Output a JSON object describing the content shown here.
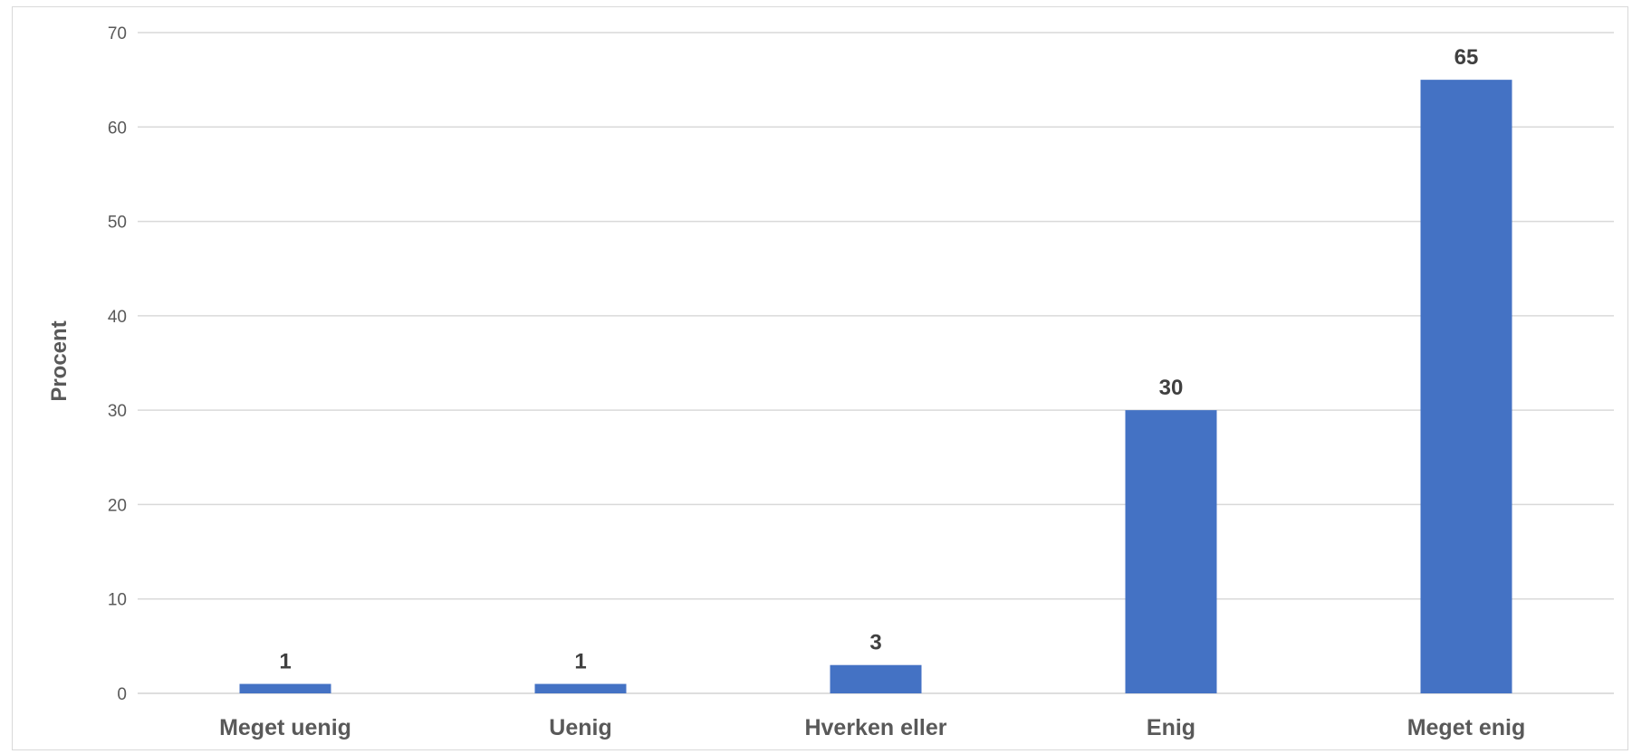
{
  "chart_data": {
    "type": "bar",
    "categories": [
      "Meget uenig",
      "Uenig",
      "Hverken eller",
      "Enig",
      "Meget enig"
    ],
    "values": [
      1,
      1,
      3,
      30,
      65
    ],
    "data_labels": [
      "1",
      "1",
      "3",
      "30",
      "65"
    ],
    "title": "",
    "xlabel": "",
    "ylabel": "Procent",
    "ylim": [
      0,
      70
    ],
    "yticks": [
      0,
      10,
      20,
      30,
      40,
      50,
      60,
      70
    ],
    "grid": true,
    "legend": "none",
    "bar_color": "#4472c4",
    "grid_color": "#d9d9d9"
  }
}
